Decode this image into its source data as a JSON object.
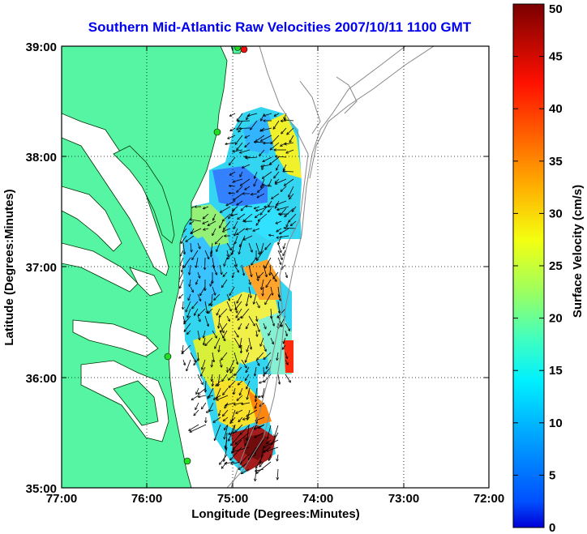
{
  "title": "Southern Mid-Atlantic Raw Velocities 2007/10/11 1100 GMT",
  "xaxis": {
    "label": "Longitude (Degrees:Minutes)",
    "ticks": [
      "77:00",
      "76:00",
      "75:00",
      "74:00",
      "73:00",
      "72:00"
    ]
  },
  "yaxis": {
    "label": "Latitude (Degrees:Minutes)",
    "ticks": [
      "39:00",
      "38:00",
      "37:00",
      "36:00",
      "35:00"
    ]
  },
  "colorbar": {
    "label": "Surface Velocity (cm/s)",
    "ticks": [
      "50",
      "45",
      "40",
      "35",
      "30",
      "25",
      "20",
      "15",
      "10",
      "5",
      "0"
    ],
    "range": [
      0,
      50
    ]
  },
  "colors": {
    "land": "#55f5a4",
    "title": "#0000ee",
    "station": "#22dd22",
    "station_alt": "#ee1111"
  },
  "map_extent": {
    "lon": [
      -77,
      -72
    ],
    "lat": [
      35,
      39
    ]
  }
}
